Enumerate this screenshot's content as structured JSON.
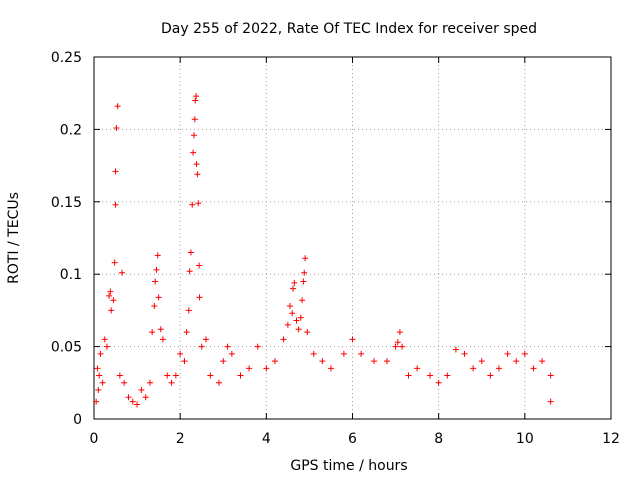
{
  "chart_data": {
    "type": "scatter",
    "title": "Day 255 of 2022, Rate Of TEC Index for receiver sped",
    "xlabel": "GPS time / hours",
    "ylabel": "ROTI / TECUs",
    "xlim": [
      0,
      12
    ],
    "ylim": [
      0,
      0.25
    ],
    "xticks": [
      0,
      2,
      4,
      6,
      8,
      10,
      12
    ],
    "xtick_labels": [
      "0",
      "2",
      "4",
      "6",
      "8",
      "10",
      "12"
    ],
    "yticks": [
      0,
      0.05,
      0.1,
      0.15,
      0.2,
      0.25
    ],
    "ytick_labels": [
      "0",
      "0.05",
      "0.1",
      "0.15",
      "0.2",
      "0.25"
    ],
    "grid": true,
    "marker": "+",
    "series": [
      {
        "name": "ROTI",
        "color": "#ff0000",
        "points": [
          [
            0.05,
            0.012
          ],
          [
            0.08,
            0.035
          ],
          [
            0.1,
            0.02
          ],
          [
            0.12,
            0.03
          ],
          [
            0.15,
            0.045
          ],
          [
            0.2,
            0.025
          ],
          [
            0.25,
            0.055
          ],
          [
            0.3,
            0.05
          ],
          [
            0.35,
            0.085
          ],
          [
            0.38,
            0.088
          ],
          [
            0.4,
            0.075
          ],
          [
            0.45,
            0.082
          ],
          [
            0.48,
            0.108
          ],
          [
            0.5,
            0.148
          ],
          [
            0.5,
            0.171
          ],
          [
            0.52,
            0.201
          ],
          [
            0.55,
            0.216
          ],
          [
            0.6,
            0.03
          ],
          [
            0.65,
            0.101
          ],
          [
            0.7,
            0.025
          ],
          [
            0.8,
            0.015
          ],
          [
            0.9,
            0.012
          ],
          [
            1.0,
            0.01
          ],
          [
            1.1,
            0.02
          ],
          [
            1.2,
            0.015
          ],
          [
            1.3,
            0.025
          ],
          [
            1.35,
            0.06
          ],
          [
            1.4,
            0.078
          ],
          [
            1.42,
            0.095
          ],
          [
            1.45,
            0.103
          ],
          [
            1.48,
            0.113
          ],
          [
            1.5,
            0.084
          ],
          [
            1.55,
            0.062
          ],
          [
            1.6,
            0.055
          ],
          [
            1.7,
            0.03
          ],
          [
            1.8,
            0.025
          ],
          [
            1.9,
            0.03
          ],
          [
            2.0,
            0.045
          ],
          [
            2.1,
            0.04
          ],
          [
            2.15,
            0.06
          ],
          [
            2.2,
            0.075
          ],
          [
            2.22,
            0.102
          ],
          [
            2.25,
            0.115
          ],
          [
            2.28,
            0.148
          ],
          [
            2.3,
            0.184
          ],
          [
            2.32,
            0.196
          ],
          [
            2.34,
            0.207
          ],
          [
            2.35,
            0.22
          ],
          [
            2.37,
            0.223
          ],
          [
            2.38,
            0.176
          ],
          [
            2.4,
            0.169
          ],
          [
            2.42,
            0.149
          ],
          [
            2.44,
            0.106
          ],
          [
            2.45,
            0.084
          ],
          [
            2.5,
            0.05
          ],
          [
            2.6,
            0.055
          ],
          [
            2.7,
            0.03
          ],
          [
            2.9,
            0.025
          ],
          [
            3.0,
            0.04
          ],
          [
            3.1,
            0.05
          ],
          [
            3.2,
            0.045
          ],
          [
            3.4,
            0.03
          ],
          [
            3.6,
            0.035
          ],
          [
            3.8,
            0.05
          ],
          [
            4.0,
            0.035
          ],
          [
            4.2,
            0.04
          ],
          [
            4.4,
            0.055
          ],
          [
            4.5,
            0.065
          ],
          [
            4.55,
            0.078
          ],
          [
            4.6,
            0.073
          ],
          [
            4.62,
            0.09
          ],
          [
            4.65,
            0.094
          ],
          [
            4.7,
            0.068
          ],
          [
            4.75,
            0.062
          ],
          [
            4.8,
            0.07
          ],
          [
            4.83,
            0.082
          ],
          [
            4.86,
            0.095
          ],
          [
            4.88,
            0.101
          ],
          [
            4.9,
            0.111
          ],
          [
            4.95,
            0.06
          ],
          [
            5.1,
            0.045
          ],
          [
            5.3,
            0.04
          ],
          [
            5.5,
            0.035
          ],
          [
            5.8,
            0.045
          ],
          [
            6.0,
            0.055
          ],
          [
            6.2,
            0.045
          ],
          [
            6.5,
            0.04
          ],
          [
            6.8,
            0.04
          ],
          [
            7.0,
            0.05
          ],
          [
            7.05,
            0.053
          ],
          [
            7.1,
            0.06
          ],
          [
            7.15,
            0.05
          ],
          [
            7.3,
            0.03
          ],
          [
            7.5,
            0.035
          ],
          [
            7.8,
            0.03
          ],
          [
            8.0,
            0.025
          ],
          [
            8.2,
            0.03
          ],
          [
            8.4,
            0.048
          ],
          [
            8.6,
            0.045
          ],
          [
            8.8,
            0.035
          ],
          [
            9.0,
            0.04
          ],
          [
            9.2,
            0.03
          ],
          [
            9.4,
            0.035
          ],
          [
            9.6,
            0.045
          ],
          [
            9.8,
            0.04
          ],
          [
            10.0,
            0.045
          ],
          [
            10.2,
            0.035
          ],
          [
            10.4,
            0.04
          ],
          [
            10.6,
            0.03
          ],
          [
            10.6,
            0.012
          ]
        ]
      }
    ]
  }
}
